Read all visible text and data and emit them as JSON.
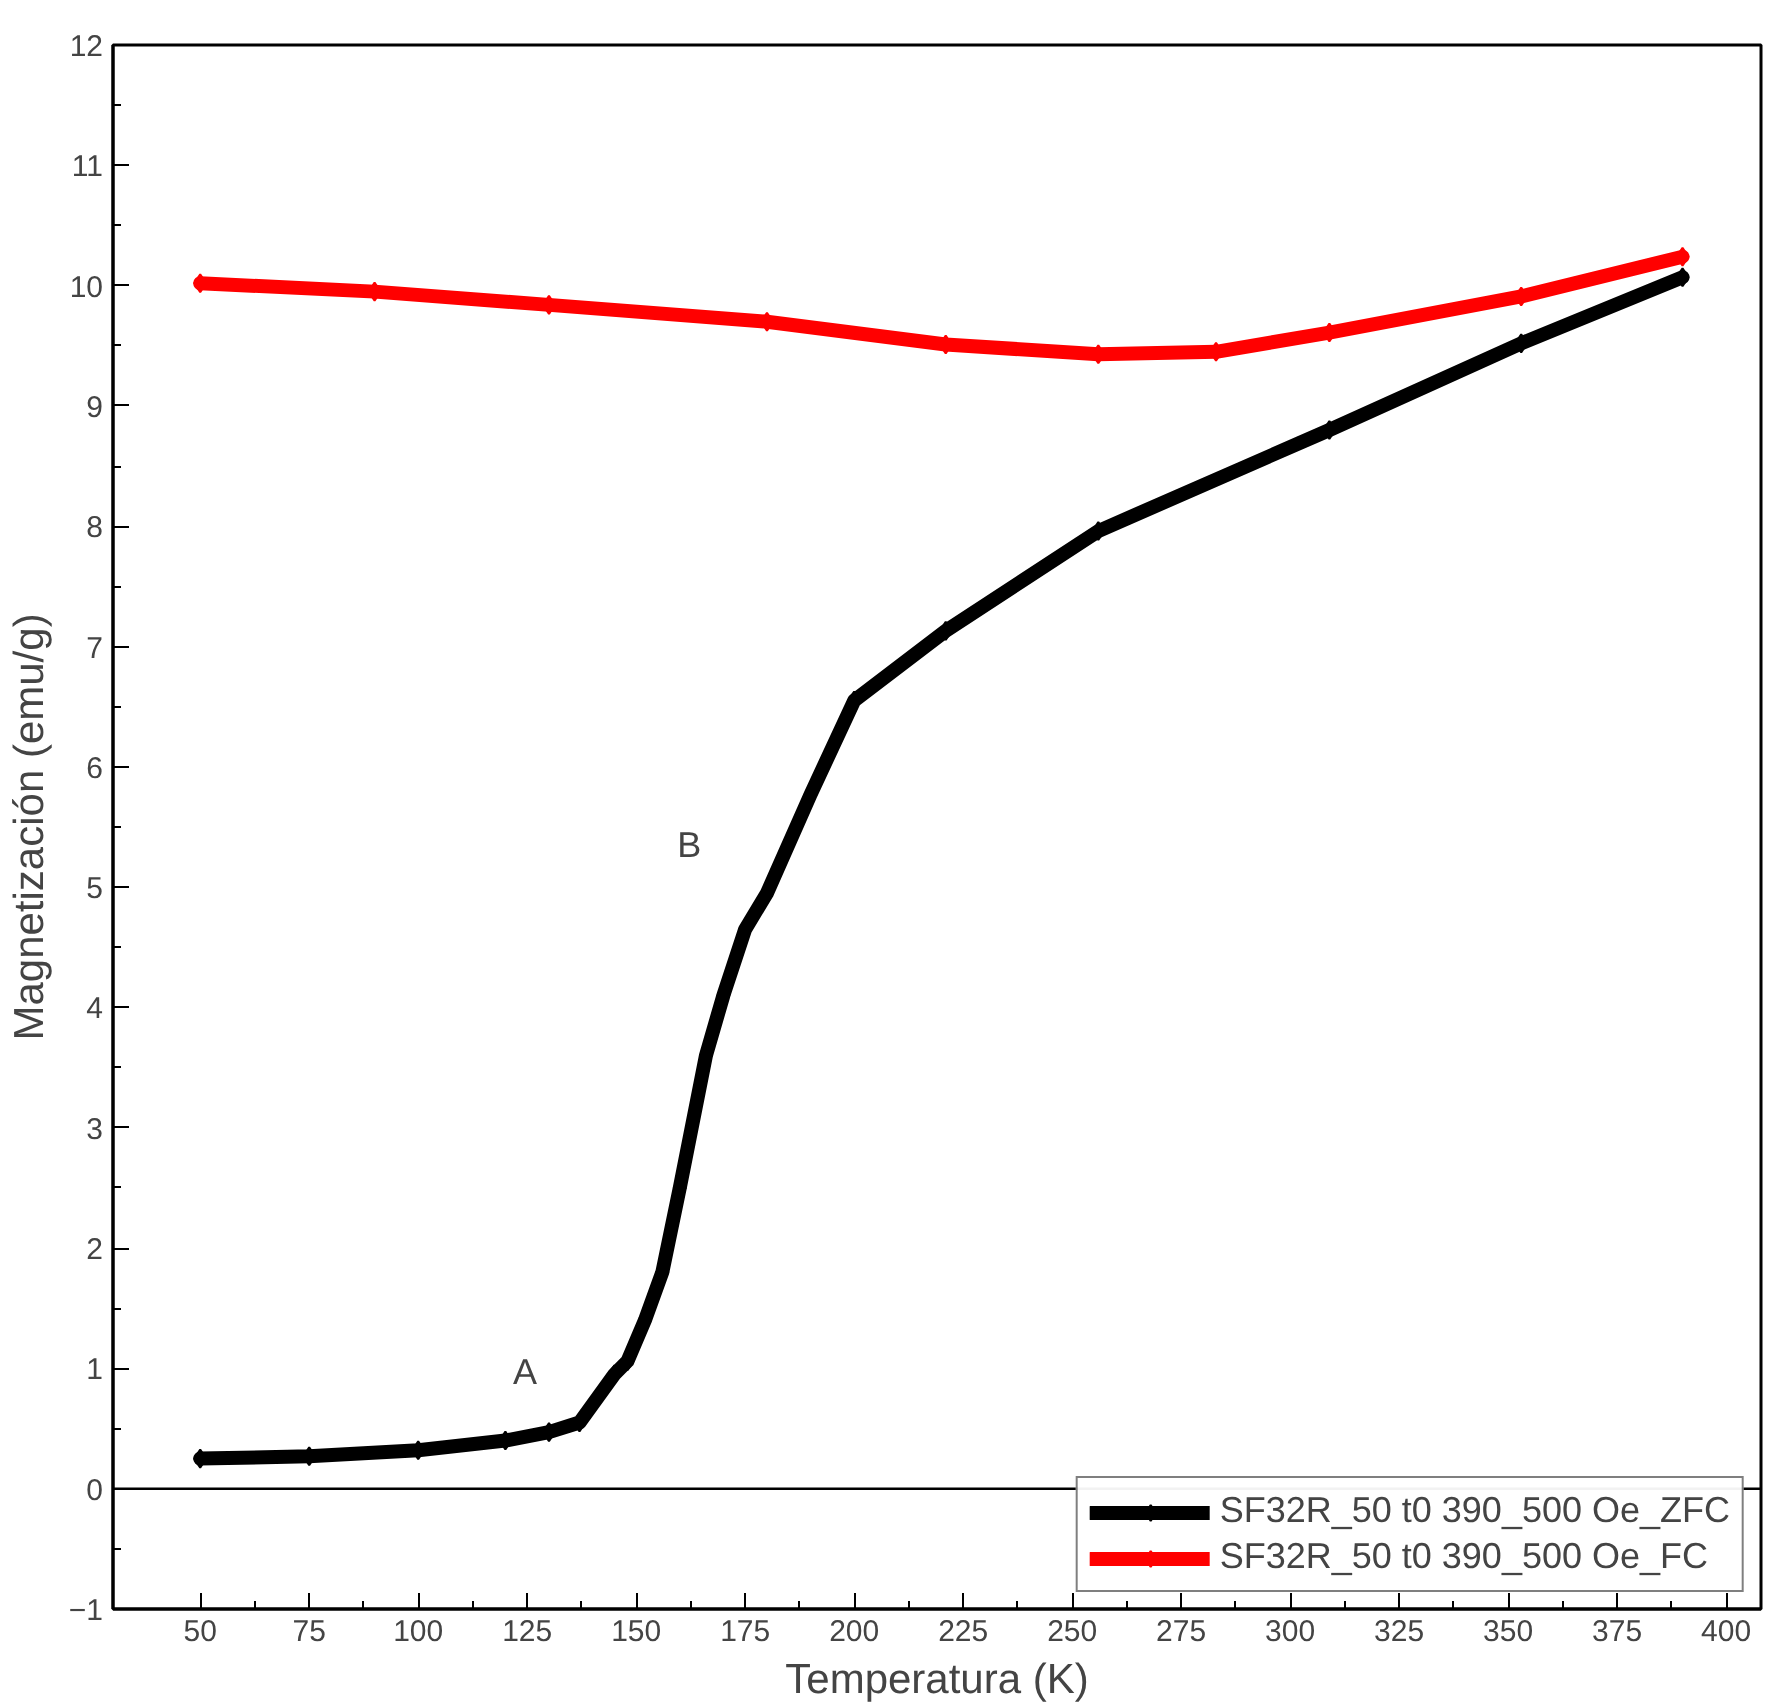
{
  "chart_data": {
    "type": "line",
    "xlabel": "Temperatura (K)",
    "ylabel": "Magnetización (emu/g)",
    "xlim": [
      30,
      408
    ],
    "ylim": [
      -1,
      12
    ],
    "xticks": [
      50,
      75,
      100,
      125,
      150,
      175,
      200,
      225,
      250,
      275,
      300,
      325,
      350,
      375,
      400
    ],
    "yticks": [
      -1,
      0,
      1,
      2,
      3,
      4,
      5,
      6,
      7,
      8,
      9,
      10,
      11,
      12
    ],
    "legend": "bottom right",
    "marker": "diamond",
    "line_style": "solid",
    "grid": false,
    "ref_lines": [
      {
        "axis": "y",
        "value": 0,
        "color": "#000000"
      }
    ],
    "annotations": [
      "A",
      "B"
    ],
    "series": [
      {
        "name": "SF32R_50 t0 390_500 Oe_ZFC",
        "color": "#000000",
        "x": [
          50,
          75,
          100,
          120,
          130,
          137,
          145,
          148,
          152,
          156,
          160,
          166,
          170,
          175,
          180,
          190,
          200,
          221,
          256,
          309,
          353,
          390
        ],
        "values": [
          0.25,
          0.27,
          0.32,
          0.4,
          0.47,
          0.55,
          0.95,
          1.06,
          1.4,
          1.8,
          2.5,
          3.6,
          4.1,
          4.65,
          4.95,
          5.77,
          6.55,
          7.13,
          7.96,
          8.8,
          9.52,
          10.07
        ]
      },
      {
        "name": "SF32R_50 t0 390_500 Oe_FC",
        "color": "#ff0000",
        "x": [
          50,
          90,
          130,
          180,
          221,
          256,
          283,
          309,
          353,
          390
        ],
        "values": [
          10.02,
          9.95,
          9.84,
          9.7,
          9.51,
          9.43,
          9.45,
          9.61,
          9.91,
          10.24
        ]
      }
    ]
  }
}
